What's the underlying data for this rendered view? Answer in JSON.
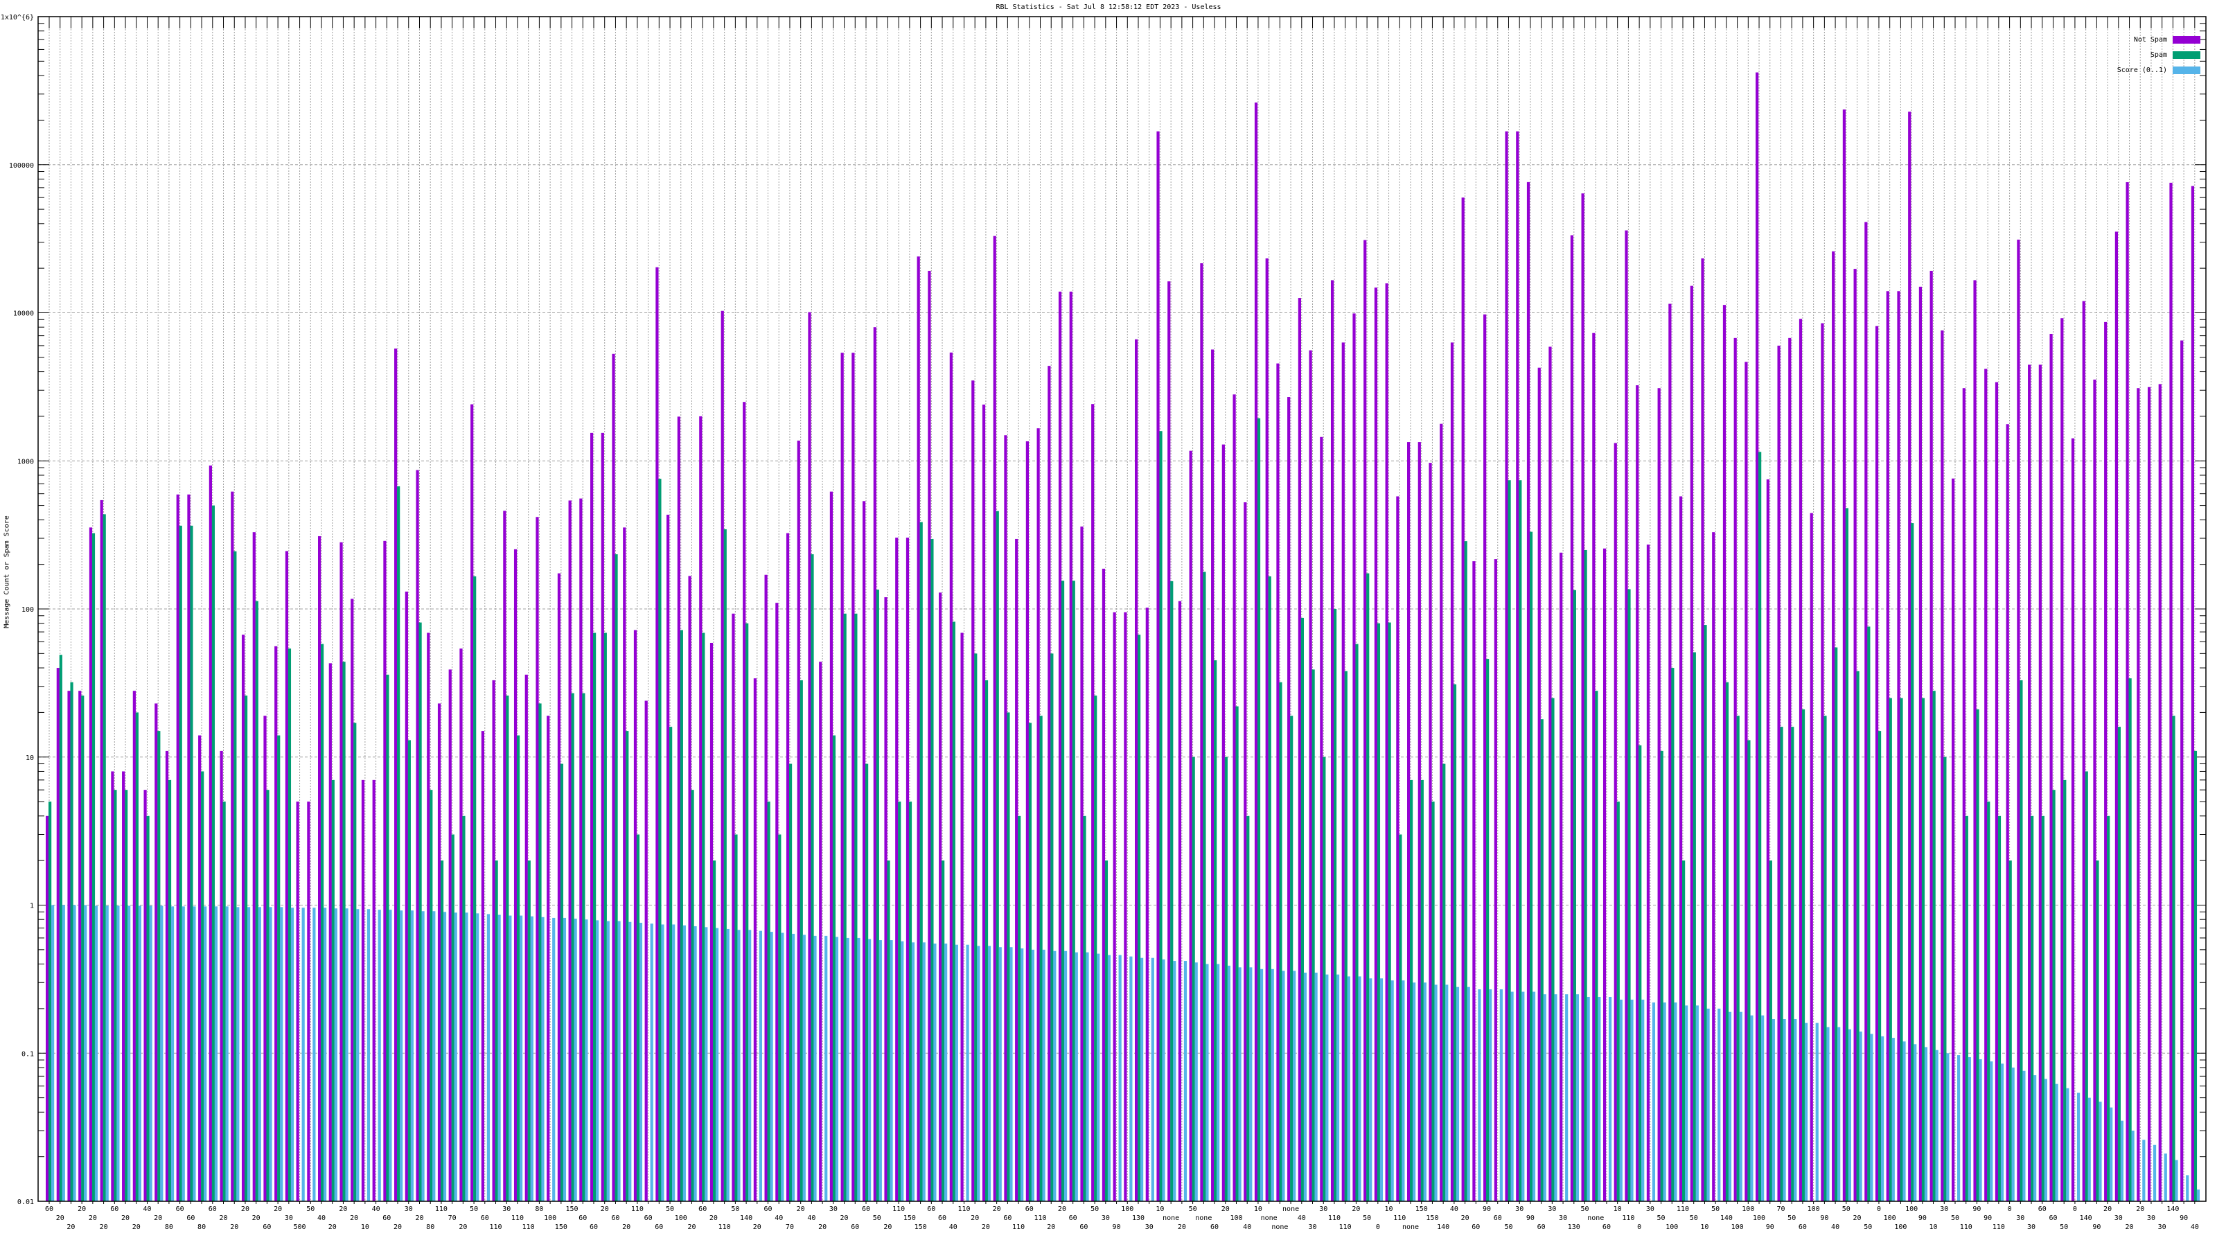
{
  "chart_data": {
    "type": "bar",
    "title": "RBL Statistics - Sat Jul  8 12:58:12 EDT 2023 - Useless",
    "xlabel": "",
    "ylabel": "Message Count or Spam Score",
    "yscale": "log",
    "ylim": [
      0.01,
      1000000
    ],
    "grid": true,
    "legend_position": "top-right",
    "ytick_values": [
      1000000,
      100000,
      10000,
      1000,
      100,
      10,
      1,
      0.1,
      0.01
    ],
    "ytick_labels": [
      "1x10^{6}",
      "100000",
      "10000",
      "1000",
      "100",
      "10",
      "1",
      "0.1",
      "0.01"
    ],
    "categories": [
      "60",
      "20",
      "20",
      "20",
      "20",
      "20",
      "60",
      "20",
      "20",
      "40",
      "20",
      "80",
      "60",
      "60",
      "80",
      "60",
      "20",
      "20",
      "20",
      "20",
      "60",
      "20",
      "30",
      "500",
      "50",
      "40",
      "20",
      "20",
      "20",
      "10",
      "40",
      "60",
      "20",
      "30",
      "20",
      "80",
      "110",
      "70",
      "20",
      "50",
      "60",
      "110",
      "30",
      "110",
      "110",
      "80",
      "100",
      "150",
      "150",
      "60",
      "60",
      "20",
      "60",
      "20",
      "110",
      "60",
      "60",
      "50",
      "100",
      "20",
      "60",
      "20",
      "110",
      "50",
      "140",
      "20",
      "60",
      "40",
      "70",
      "20",
      "40",
      "20",
      "30",
      "20",
      "60",
      "60",
      "50",
      "20",
      "110",
      "150",
      "150",
      "60",
      "60",
      "40",
      "110",
      "20",
      "20",
      "20",
      "60",
      "110",
      "60",
      "110",
      "20",
      "20",
      "60",
      "60",
      "50",
      "30",
      "90",
      "100",
      "130",
      "30",
      "10",
      "none",
      "20",
      "50",
      "none",
      "60",
      "20",
      "100",
      "40",
      "10",
      "none",
      "none",
      "none",
      "40",
      "30",
      "30",
      "110",
      "110",
      "20",
      "50",
      "0",
      "10",
      "110",
      "none",
      "150",
      "150",
      "140",
      "40",
      "20",
      "60",
      "90",
      "60",
      "50",
      "30",
      "90",
      "60",
      "30",
      "30",
      "130",
      "50",
      "none",
      "60",
      "10",
      "110",
      "0",
      "30",
      "50",
      "100",
      "110",
      "50",
      "10",
      "50",
      "140",
      "100",
      "100",
      "100",
      "90",
      "70",
      "50",
      "60",
      "100",
      "90",
      "40",
      "50",
      "20",
      "50",
      "0",
      "100",
      "100",
      "100",
      "90",
      "10",
      "30",
      "50",
      "110",
      "90",
      "90",
      "110",
      "0",
      "30",
      "30",
      "60",
      "60",
      "50",
      "0",
      "140",
      "90",
      "20",
      "30",
      "20",
      "20",
      "30",
      "30",
      "140",
      "90",
      "40"
    ],
    "series": [
      {
        "name": "Not Spam",
        "color": "#9400d3",
        "values": [
          4,
          40,
          28,
          28,
          355,
          543,
          8,
          8,
          28,
          6,
          23,
          11,
          593,
          593,
          14,
          930,
          11,
          620,
          67,
          330,
          19,
          56,
          246,
          5,
          5,
          310,
          43,
          282,
          117,
          7,
          7,
          288,
          5730,
          131,
          867,
          69,
          23,
          39,
          54,
          2410,
          15,
          33,
          460,
          253,
          36,
          418,
          19,
          174,
          540,
          557,
          1545,
          1545,
          5280,
          355,
          72,
          24,
          20300,
          433,
          1990,
          167,
          2000,
          59,
          10300,
          93,
          2500,
          34,
          170,
          110,
          325,
          1370,
          10100,
          44,
          620,
          5370,
          5370,
          535,
          8000,
          120,
          303,
          303,
          24000,
          19200,
          129,
          5390,
          69,
          3490,
          2400,
          33000,
          1490,
          297,
          1355,
          1660,
          4380,
          13900,
          13900,
          360,
          2420,
          187,
          95,
          95,
          6620,
          102,
          168000,
          16300,
          113,
          1170,
          21600,
          5650,
          1290,
          2810,
          525,
          263000,
          23300,
          4550,
          2700,
          12600,
          5580,
          1450,
          16600,
          6300,
          9900,
          31000,
          14800,
          15800,
          576,
          1340,
          1340,
          970,
          1780,
          6300,
          60000,
          210,
          9750,
          217,
          168000,
          168000,
          76300,
          4260,
          5900,
          240,
          33400,
          64000,
          7300,
          256,
          1320,
          36000,
          3240,
          272,
          3100,
          11500,
          576,
          15200,
          23300,
          330,
          11300,
          6760,
          4660,
          420000,
          750,
          6000,
          6760,
          9100,
          444,
          8500,
          26000,
          236000,
          19800,
          41000,
          8130,
          14000,
          14000,
          228000,
          15000,
          19200,
          7600,
          760,
          3100,
          16600,
          4180,
          3400,
          1770,
          31200,
          4460,
          4460,
          7200,
          9200,
          1420,
          12000,
          3540,
          8660,
          35300,
          76200,
          3100,
          3150,
          3300,
          75500,
          6500,
          71800
        ]
      },
      {
        "name": "Spam",
        "color": "#009e73",
        "values": [
          5,
          49,
          32,
          26,
          325,
          436,
          6,
          6,
          20,
          4,
          15,
          7,
          365,
          365,
          8,
          500,
          5,
          245,
          26,
          113,
          6,
          14,
          54,
          0,
          0,
          58,
          7,
          44,
          17,
          0,
          0,
          36,
          673,
          13,
          81,
          6,
          2,
          3,
          4,
          166,
          0,
          2,
          26,
          14,
          2,
          23,
          0,
          9,
          27,
          27,
          69,
          69,
          234,
          15,
          3,
          0,
          757,
          16,
          72,
          6,
          69,
          2,
          345,
          3,
          80,
          0,
          5,
          3,
          9,
          33,
          234,
          0,
          14,
          93,
          93,
          9,
          135,
          2,
          5,
          5,
          386,
          297,
          2,
          82,
          0,
          50,
          33,
          458,
          20,
          4,
          17,
          19,
          50,
          155,
          155,
          4,
          26,
          2,
          0,
          0,
          67,
          0,
          1590,
          154,
          0,
          10,
          178,
          45,
          10,
          22,
          4,
          1940,
          166,
          32,
          19,
          87,
          39,
          10,
          100,
          38,
          58,
          174,
          80,
          81,
          3,
          7,
          7,
          5,
          9,
          31,
          287,
          0,
          46,
          0,
          740,
          740,
          332,
          18,
          25,
          0,
          134,
          250,
          28,
          0,
          5,
          136,
          12,
          0,
          11,
          40,
          2,
          51,
          78,
          0,
          32,
          19,
          13,
          1150,
          2,
          16,
          16,
          21,
          0,
          19,
          55,
          480,
          38,
          76,
          15,
          25,
          25,
          380,
          25,
          28,
          10,
          0,
          4,
          21,
          5,
          4,
          2,
          33,
          4,
          4,
          6,
          7,
          0,
          8,
          2,
          4,
          16,
          34,
          0,
          0,
          0,
          19,
          0,
          11
        ]
      },
      {
        "name": "Score (0..1)",
        "color": "#56b4e9",
        "values": [
          1.0,
          1.0,
          1.0,
          1.0,
          0.99,
          0.99,
          0.99,
          0.99,
          0.99,
          0.99,
          0.99,
          0.98,
          0.98,
          0.98,
          0.98,
          0.98,
          0.98,
          0.97,
          0.97,
          0.97,
          0.97,
          0.97,
          0.96,
          0.96,
          0.96,
          0.96,
          0.95,
          0.95,
          0.94,
          0.94,
          0.93,
          0.93,
          0.92,
          0.92,
          0.91,
          0.91,
          0.9,
          0.89,
          0.89,
          0.88,
          0.87,
          0.86,
          0.85,
          0.85,
          0.84,
          0.83,
          0.82,
          0.82,
          0.81,
          0.8,
          0.79,
          0.78,
          0.78,
          0.77,
          0.76,
          0.75,
          0.74,
          0.74,
          0.73,
          0.72,
          0.71,
          0.7,
          0.69,
          0.68,
          0.68,
          0.67,
          0.66,
          0.65,
          0.64,
          0.63,
          0.62,
          0.62,
          0.61,
          0.6,
          0.6,
          0.59,
          0.58,
          0.58,
          0.57,
          0.56,
          0.56,
          0.55,
          0.55,
          0.54,
          0.54,
          0.53,
          0.53,
          0.52,
          0.52,
          0.51,
          0.5,
          0.5,
          0.49,
          0.49,
          0.48,
          0.48,
          0.47,
          0.46,
          0.46,
          0.45,
          0.44,
          0.44,
          0.43,
          0.42,
          0.42,
          0.41,
          0.4,
          0.4,
          0.39,
          0.38,
          0.38,
          0.37,
          0.37,
          0.36,
          0.36,
          0.35,
          0.35,
          0.34,
          0.34,
          0.33,
          0.33,
          0.32,
          0.32,
          0.31,
          0.31,
          0.3,
          0.3,
          0.29,
          0.29,
          0.28,
          0.28,
          0.27,
          0.27,
          0.27,
          0.26,
          0.26,
          0.26,
          0.25,
          0.25,
          0.25,
          0.25,
          0.24,
          0.24,
          0.24,
          0.23,
          0.23,
          0.23,
          0.22,
          0.22,
          0.22,
          0.21,
          0.21,
          0.2,
          0.2,
          0.19,
          0.19,
          0.18,
          0.18,
          0.17,
          0.17,
          0.17,
          0.16,
          0.16,
          0.15,
          0.15,
          0.145,
          0.14,
          0.135,
          0.13,
          0.127,
          0.12,
          0.115,
          0.11,
          0.105,
          0.1,
          0.097,
          0.094,
          0.091,
          0.088,
          0.085,
          0.08,
          0.076,
          0.071,
          0.067,
          0.062,
          0.058,
          0.054,
          0.05,
          0.047,
          0.043,
          0.035,
          0.03,
          0.026,
          0.024,
          0.021,
          0.019,
          0.015,
          0.012
        ]
      }
    ]
  }
}
